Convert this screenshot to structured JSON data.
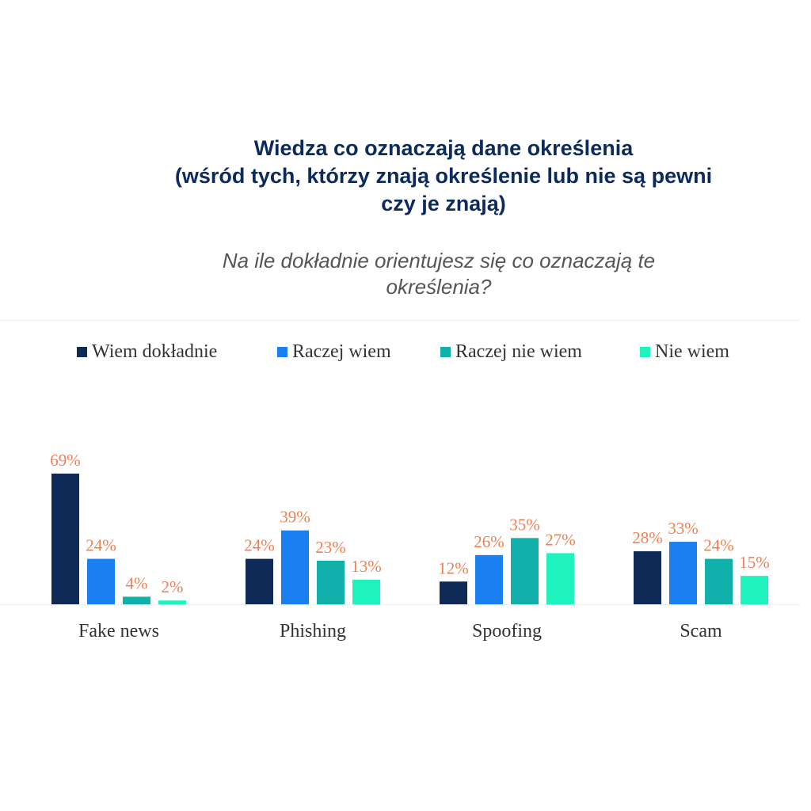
{
  "header": {
    "title_line1": "Wiedza co oznaczają dane określenia",
    "title_line2": "(wśród tych, którzy znają określenie lub nie są pewni",
    "title_line3": "czy je znają)",
    "subtitle_line1": "Na ile dokładnie orientujesz się co oznaczają te",
    "subtitle_line2": "określenia?"
  },
  "chart_data": {
    "type": "bar",
    "title": "Wiedza co oznaczają dane określenia (wśród tych, którzy znają określenie lub nie są pewni czy je znają)",
    "subtitle": "Na ile dokładnie orientujesz się co oznaczają te określenia?",
    "xlabel": "",
    "ylabel": "",
    "ylim": [
      0,
      70
    ],
    "grid": false,
    "legend_position": "top",
    "categories": [
      "Fake news",
      "Phishing",
      "Spoofing",
      "Scam"
    ],
    "series": [
      {
        "name": "Wiem dokładnie",
        "color": "#0f2a56",
        "values": [
          69,
          24,
          12,
          28
        ],
        "labels": [
          "69%",
          "24%",
          "12%",
          "28%"
        ]
      },
      {
        "name": "Raczej wiem",
        "color": "#1a7ff0",
        "values": [
          24,
          39,
          26,
          33
        ],
        "labels": [
          "24%",
          "39%",
          "26%",
          "33%"
        ]
      },
      {
        "name": "Raczej nie wiem",
        "color": "#12b0ab",
        "values": [
          4,
          23,
          35,
          24
        ],
        "labels": [
          "4%",
          "23%",
          "35%",
          "24%"
        ]
      },
      {
        "name": "Nie wiem",
        "color": "#1ef2bd",
        "values": [
          2,
          13,
          27,
          15
        ],
        "labels": [
          "2%",
          "13%",
          "27%",
          "15%"
        ]
      }
    ],
    "label_color": "#ee8055"
  }
}
